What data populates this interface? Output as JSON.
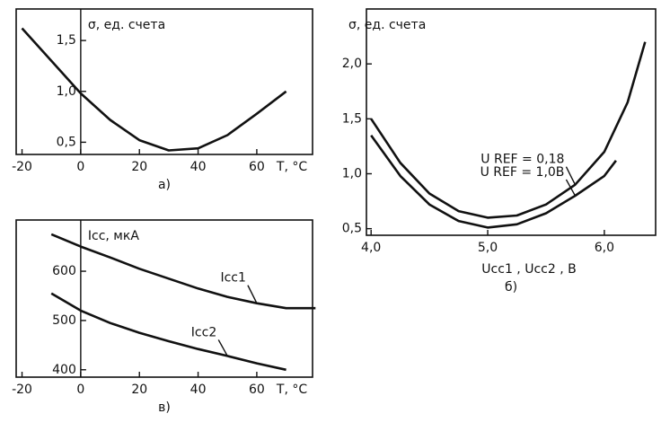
{
  "chart_data": [
    {
      "type": "line",
      "y_label": "σ, ед. счета",
      "x_label": "T, °C",
      "caption": "а)",
      "xlim": [
        -22,
        79
      ],
      "ylim": [
        0.38,
        1.81
      ],
      "xticks": [
        -20,
        0,
        20,
        40,
        60
      ],
      "yticks": [
        {
          "value": 0.5,
          "label": "0,5"
        },
        {
          "value": 1.0,
          "label": "1,0"
        },
        {
          "value": 1.5,
          "label": "1,5"
        }
      ],
      "series": [
        {
          "color": "#111111",
          "x": [
            -20,
            -10,
            0,
            10,
            20,
            30,
            40,
            50,
            60,
            70
          ],
          "values": [
            1.62,
            1.3,
            0.98,
            0.72,
            0.52,
            0.42,
            0.44,
            0.57,
            0.78,
            1.0
          ]
        }
      ]
    },
    {
      "type": "line",
      "y_label": "σ, ед. счета",
      "x_label": "Uсс1 , Uсс2 , B",
      "caption": "б)",
      "xlim": [
        3.96,
        6.44
      ],
      "ylim": [
        0.44,
        2.5
      ],
      "xticks": [
        {
          "value": 4.0,
          "label": "4,0"
        },
        {
          "value": 5.0,
          "label": "5,0"
        },
        {
          "value": 6.0,
          "label": "6,0"
        }
      ],
      "yticks": [
        {
          "value": 0.5,
          "label": "0,5"
        },
        {
          "value": 1.0,
          "label": "1,0"
        },
        {
          "value": 1.5,
          "label": "1,5"
        },
        {
          "value": 2.0,
          "label": "2,0"
        }
      ],
      "series": [
        {
          "name": "U REF = 0,18",
          "color": "#111111",
          "x": [
            4.0,
            4.25,
            4.5,
            4.75,
            5.0,
            5.25,
            5.5,
            5.75,
            6.0,
            6.2,
            6.35
          ],
          "values": [
            1.5,
            1.1,
            0.82,
            0.66,
            0.6,
            0.62,
            0.72,
            0.9,
            1.2,
            1.65,
            2.2
          ]
        },
        {
          "name": "U REF = 1,0B",
          "color": "#111111",
          "x": [
            4.0,
            4.25,
            4.5,
            4.75,
            5.0,
            5.25,
            5.5,
            5.75,
            6.0,
            6.1
          ],
          "values": [
            1.35,
            0.98,
            0.72,
            0.57,
            0.51,
            0.54,
            0.64,
            0.8,
            0.98,
            1.12
          ]
        }
      ]
    },
    {
      "type": "line",
      "y_label": "Icc, мкА",
      "x_label": "T, °C",
      "caption": "в)",
      "xlim": [
        -22,
        79
      ],
      "ylim": [
        385,
        704
      ],
      "xticks": [
        -20,
        0,
        20,
        40,
        60
      ],
      "yticks": [
        400,
        500,
        600
      ],
      "series": [
        {
          "name": "Icc1",
          "color": "#111111",
          "x": [
            -10,
            0,
            10,
            20,
            30,
            40,
            50,
            60,
            70,
            80
          ],
          "values": [
            675,
            650,
            628,
            605,
            585,
            565,
            548,
            535,
            525,
            525
          ]
        },
        {
          "name": "Icc2",
          "color": "#111111",
          "x": [
            -10,
            0,
            10,
            20,
            30,
            40,
            50,
            60,
            70
          ],
          "values": [
            555,
            520,
            495,
            475,
            458,
            442,
            428,
            413,
            400
          ]
        }
      ]
    }
  ]
}
